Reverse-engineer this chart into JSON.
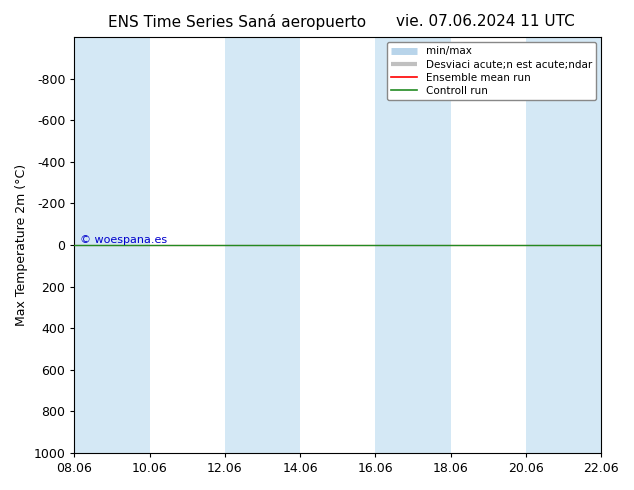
{
  "title_left": "ENS Time Series Saná aeropuerto",
  "title_right": "vie. 07.06.2024 11 UTC",
  "ylabel": "Max Temperature 2m (°C)",
  "ylim_top": -1000,
  "ylim_bottom": 1000,
  "yticks": [
    -800,
    -600,
    -400,
    -200,
    0,
    200,
    400,
    600,
    800,
    1000
  ],
  "xtick_labels": [
    "08.06",
    "10.06",
    "12.06",
    "14.06",
    "16.06",
    "18.06",
    "20.06",
    "22.06"
  ],
  "xtick_positions": [
    0,
    2,
    4,
    6,
    8,
    10,
    12,
    14
  ],
  "background_color": "#ffffff",
  "plot_bg_color": "#ffffff",
  "band_color": "#d4e8f5",
  "zero_line_color": "#228B22",
  "mean_line_color": "#ff0000",
  "watermark_text": "© woespana.es",
  "watermark_color": "#0000cc",
  "legend_entries": [
    "min/max",
    "Desviaci acute;n est acute;ndar",
    "Ensemble mean run",
    "Controll run"
  ],
  "title_fontsize": 11,
  "axis_fontsize": 9,
  "tick_fontsize": 9
}
